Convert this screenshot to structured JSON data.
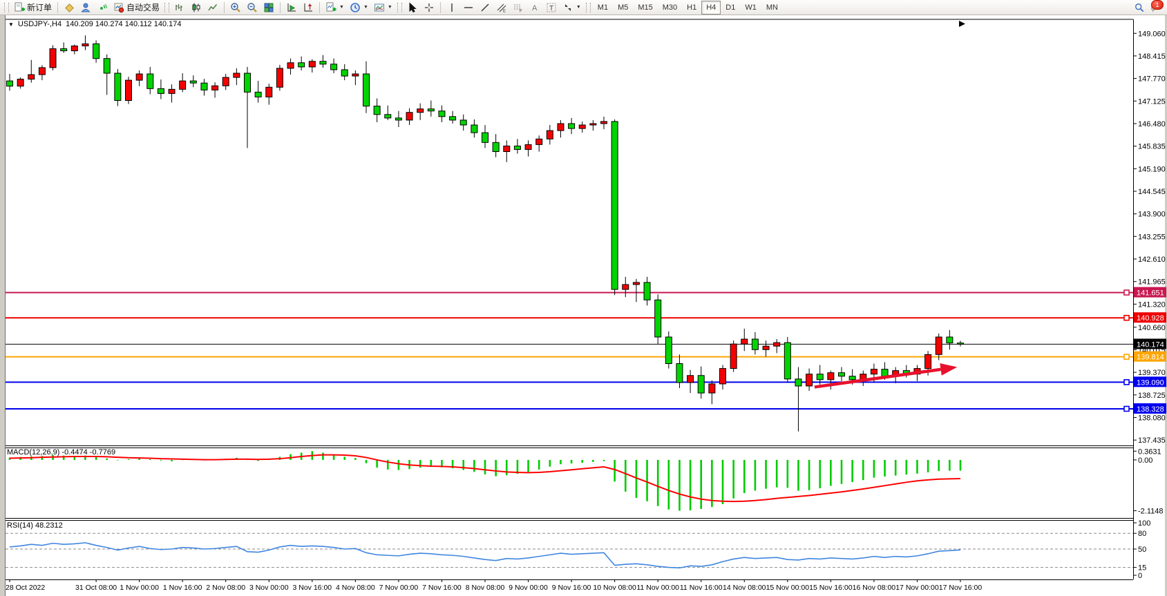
{
  "toolbar": {
    "new_order_label": "新订单",
    "autotrading_label": "自动交易",
    "notification_count": "1",
    "timeframes": [
      "M1",
      "M5",
      "M15",
      "M30",
      "H1",
      "H4",
      "D1",
      "W1",
      "MN"
    ],
    "active_timeframe": "H4"
  },
  "chart_header": {
    "symbol_period": "USDJPY-,H4",
    "ohlc": "140.209 140.274 140.112 140.174"
  },
  "chart_data": {
    "type": "candlestick",
    "symbol": "USDJPY-",
    "period": "H4",
    "title": "USDJPY-,H4  140.209 140.274 140.112 140.174",
    "ylim": [
      137.34,
      149.46
    ],
    "up_color": "#F40000",
    "down_color": "#00D400",
    "wick_color": "#000000",
    "price_ticks": [
      "149.060",
      "148.415",
      "147.770",
      "147.125",
      "146.480",
      "145.835",
      "145.190",
      "144.545",
      "143.900",
      "143.255",
      "142.610",
      "141.965",
      "141.320",
      "140.660",
      "140.015",
      "139.370",
      "138.725",
      "138.080",
      "137.435"
    ],
    "current_price": "140.174",
    "hlines": [
      {
        "price": 141.651,
        "label": "141.651",
        "color": "#C81850",
        "width": 2,
        "handle": true
      },
      {
        "price": 140.928,
        "label": "140.928",
        "color": "#EE0000",
        "width": 2,
        "handle": true
      },
      {
        "price": 140.174,
        "label": "140.174",
        "color": "#000000",
        "width": 1,
        "handle": false,
        "is_current_price": true
      },
      {
        "price": 139.814,
        "label": "139.814",
        "color": "#FFA500",
        "width": 2,
        "handle": true
      },
      {
        "price": 139.09,
        "label": "139.090",
        "color": "#0000EE",
        "width": 2,
        "handle": true
      },
      {
        "price": 138.328,
        "label": "138.328",
        "color": "#0000EE",
        "width": 2,
        "handle": true
      }
    ],
    "annotations": [
      {
        "type": "arrow",
        "color": "#E8112D",
        "x1_bar": 74.5,
        "y1_price": 138.95,
        "x2_bar": 87.7,
        "y2_price": 139.52
      }
    ],
    "candles": [
      [
        "2022.10.28 00:00",
        147.7,
        147.9,
        147.42,
        147.55
      ],
      [
        "2022.10.28 04:00",
        147.55,
        147.8,
        147.48,
        147.75
      ],
      [
        "2022.10.28 08:00",
        147.75,
        148.3,
        147.65,
        147.88
      ],
      [
        "2022.10.28 12:00",
        147.88,
        148.15,
        147.72,
        148.08
      ],
      [
        "2022.10.28 16:00",
        148.08,
        148.72,
        148.0,
        148.62
      ],
      [
        "2022.10.28 20:00",
        148.62,
        148.8,
        148.5,
        148.56
      ],
      [
        "2022.10.31 00:00",
        148.56,
        148.74,
        148.46,
        148.7
      ],
      [
        "2022.10.31 04:00",
        148.7,
        149.0,
        148.58,
        148.76
      ],
      [
        "2022.10.31 08:00",
        148.76,
        148.86,
        148.22,
        148.34
      ],
      [
        "2022.10.31 12:00",
        148.34,
        148.46,
        147.3,
        147.92
      ],
      [
        "2022.10.31 16:00",
        147.92,
        148.04,
        146.98,
        147.14
      ],
      [
        "2022.10.31 20:00",
        147.14,
        147.82,
        147.04,
        147.72
      ],
      [
        "2022.11.01 00:00",
        147.72,
        148.0,
        147.55,
        147.9
      ],
      [
        "2022.11.01 04:00",
        147.9,
        148.1,
        147.32,
        147.48
      ],
      [
        "2022.11.01 08:00",
        147.48,
        147.74,
        147.18,
        147.34
      ],
      [
        "2022.11.01 12:00",
        147.34,
        147.6,
        147.08,
        147.46
      ],
      [
        "2022.11.01 16:00",
        147.46,
        147.92,
        147.38,
        147.7
      ],
      [
        "2022.11.01 20:00",
        147.7,
        147.86,
        147.52,
        147.64
      ],
      [
        "2022.11.02 00:00",
        147.64,
        147.76,
        147.28,
        147.44
      ],
      [
        "2022.11.02 04:00",
        147.44,
        147.66,
        147.22,
        147.56
      ],
      [
        "2022.11.02 08:00",
        147.56,
        147.9,
        147.44,
        147.8
      ],
      [
        "2022.11.02 12:00",
        147.8,
        148.06,
        147.58,
        147.92
      ],
      [
        "2022.11.02 16:00",
        147.92,
        148.1,
        145.78,
        147.38
      ],
      [
        "2022.11.02 20:00",
        147.38,
        147.7,
        147.08,
        147.24
      ],
      [
        "2022.11.03 00:00",
        147.24,
        147.62,
        147.02,
        147.52
      ],
      [
        "2022.11.03 04:00",
        147.52,
        148.16,
        147.42,
        148.06
      ],
      [
        "2022.11.03 08:00",
        148.06,
        148.34,
        147.88,
        148.22
      ],
      [
        "2022.11.03 12:00",
        148.22,
        148.4,
        148.0,
        148.1
      ],
      [
        "2022.11.03 16:00",
        148.1,
        148.32,
        147.94,
        148.26
      ],
      [
        "2022.11.03 20:00",
        148.26,
        148.44,
        148.08,
        148.18
      ],
      [
        "2022.11.04 00:00",
        148.18,
        148.34,
        147.92,
        148.02
      ],
      [
        "2022.11.04 04:00",
        148.02,
        148.18,
        147.72,
        147.84
      ],
      [
        "2022.11.04 08:00",
        147.84,
        148.0,
        147.58,
        147.9
      ],
      [
        "2022.11.04 12:00",
        147.9,
        148.26,
        146.78,
        146.98
      ],
      [
        "2022.11.04 16:00",
        146.98,
        147.2,
        146.52,
        146.74
      ],
      [
        "2022.11.04 20:00",
        146.74,
        147.0,
        146.58,
        146.64
      ],
      [
        "2022.11.07 00:00",
        146.64,
        146.84,
        146.38,
        146.58
      ],
      [
        "2022.11.07 04:00",
        146.58,
        146.92,
        146.44,
        146.8
      ],
      [
        "2022.11.07 08:00",
        146.8,
        147.06,
        146.58,
        146.9
      ],
      [
        "2022.11.07 12:00",
        146.9,
        147.14,
        146.68,
        146.84
      ],
      [
        "2022.11.07 16:00",
        146.84,
        147.0,
        146.52,
        146.68
      ],
      [
        "2022.11.07 20:00",
        146.68,
        146.84,
        146.48,
        146.58
      ],
      [
        "2022.11.08 00:00",
        146.58,
        146.74,
        146.28,
        146.44
      ],
      [
        "2022.11.08 04:00",
        146.44,
        146.6,
        146.08,
        146.22
      ],
      [
        "2022.11.08 08:00",
        146.22,
        146.44,
        145.78,
        145.94
      ],
      [
        "2022.11.08 12:00",
        145.94,
        146.18,
        145.52,
        145.68
      ],
      [
        "2022.11.08 16:00",
        145.68,
        146.0,
        145.38,
        145.84
      ],
      [
        "2022.11.08 20:00",
        145.84,
        146.04,
        145.62,
        145.74
      ],
      [
        "2022.11.09 00:00",
        145.74,
        146.0,
        145.54,
        145.88
      ],
      [
        "2022.11.09 04:00",
        145.88,
        146.14,
        145.68,
        146.04
      ],
      [
        "2022.11.09 08:00",
        146.04,
        146.44,
        145.88,
        146.28
      ],
      [
        "2022.11.09 12:00",
        146.28,
        146.58,
        146.08,
        146.48
      ],
      [
        "2022.11.09 16:00",
        146.48,
        146.64,
        146.18,
        146.34
      ],
      [
        "2022.11.09 20:00",
        146.34,
        146.54,
        146.22,
        146.44
      ],
      [
        "2022.11.10 00:00",
        146.44,
        146.58,
        146.28,
        146.48
      ],
      [
        "2022.11.10 04:00",
        146.48,
        146.68,
        146.32,
        146.54
      ],
      [
        "2022.11.10 08:00",
        146.54,
        146.6,
        141.58,
        141.74
      ],
      [
        "2022.11.10 12:00",
        141.74,
        142.1,
        141.52,
        141.88
      ],
      [
        "2022.11.10 16:00",
        141.88,
        142.04,
        141.38,
        141.94
      ],
      [
        "2022.11.10 20:00",
        141.94,
        142.1,
        141.28,
        141.44
      ],
      [
        "2022.11.11 00:00",
        141.44,
        141.6,
        140.18,
        140.38
      ],
      [
        "2022.11.11 04:00",
        140.38,
        140.54,
        139.48,
        139.62
      ],
      [
        "2022.11.11 08:00",
        139.62,
        139.88,
        138.92,
        139.08
      ],
      [
        "2022.11.11 12:00",
        139.08,
        139.44,
        138.78,
        139.28
      ],
      [
        "2022.11.11 16:00",
        139.28,
        139.54,
        138.62,
        138.78
      ],
      [
        "2022.11.11 20:00",
        138.78,
        139.14,
        138.46,
        139.04
      ],
      [
        "2022.11.14 00:00",
        139.04,
        139.58,
        138.88,
        139.48
      ],
      [
        "2022.11.14 04:00",
        139.48,
        140.28,
        139.38,
        140.18
      ],
      [
        "2022.11.14 08:00",
        140.18,
        140.62,
        139.98,
        140.32
      ],
      [
        "2022.11.14 12:00",
        140.32,
        140.52,
        139.88,
        140.02
      ],
      [
        "2022.11.14 16:00",
        140.02,
        140.28,
        139.82,
        140.12
      ],
      [
        "2022.11.14 20:00",
        140.12,
        140.32,
        139.92,
        140.22
      ],
      [
        "2022.11.15 00:00",
        140.22,
        140.38,
        139.08,
        139.18
      ],
      [
        "2022.11.15 04:00",
        139.18,
        139.52,
        137.68,
        138.98
      ],
      [
        "2022.11.15 08:00",
        138.98,
        139.48,
        138.84,
        139.32
      ],
      [
        "2022.11.15 12:00",
        139.32,
        139.58,
        139.02,
        139.16
      ],
      [
        "2022.11.15 16:00",
        139.16,
        139.42,
        138.88,
        139.36
      ],
      [
        "2022.11.15 20:00",
        139.36,
        139.52,
        139.12,
        139.26
      ],
      [
        "2022.11.16 00:00",
        139.26,
        139.46,
        139.02,
        139.16
      ],
      [
        "2022.11.16 04:00",
        139.16,
        139.42,
        138.98,
        139.32
      ],
      [
        "2022.11.16 08:00",
        139.32,
        139.62,
        139.08,
        139.46
      ],
      [
        "2022.11.16 12:00",
        139.46,
        139.66,
        139.16,
        139.26
      ],
      [
        "2022.11.16 16:00",
        139.26,
        139.52,
        139.06,
        139.42
      ],
      [
        "2022.11.16 20:00",
        139.42,
        139.58,
        139.22,
        139.32
      ],
      [
        "2022.11.17 00:00",
        139.32,
        139.58,
        139.12,
        139.48
      ],
      [
        "2022.11.17 04:00",
        139.48,
        139.98,
        139.28,
        139.88
      ],
      [
        "2022.11.17 08:00",
        139.88,
        140.48,
        139.72,
        140.38
      ],
      [
        "2022.11.17 12:00",
        140.38,
        140.58,
        140.02,
        140.21
      ],
      [
        "2022.11.17 16:00",
        140.209,
        140.274,
        140.112,
        140.174
      ]
    ],
    "date_labels": [
      {
        "bar": 0,
        "text": "28 Oct 2022"
      },
      {
        "bar": 8,
        "text": "31 Oct 08:00"
      },
      {
        "bar": 12,
        "text": "1 Nov 00:00"
      },
      {
        "bar": 16,
        "text": "1 Nov 16:00"
      },
      {
        "bar": 20,
        "text": "2 Nov 08:00"
      },
      {
        "bar": 24,
        "text": "3 Nov 00:00"
      },
      {
        "bar": 28,
        "text": "3 Nov 16:00"
      },
      {
        "bar": 32,
        "text": "4 Nov 08:00"
      },
      {
        "bar": 36,
        "text": "7 Nov 00:00"
      },
      {
        "bar": 40,
        "text": "7 Nov 16:00"
      },
      {
        "bar": 44,
        "text": "8 Nov 08:00"
      },
      {
        "bar": 48,
        "text": "9 Nov 00:00"
      },
      {
        "bar": 52,
        "text": "9 Nov 16:00"
      },
      {
        "bar": 56,
        "text": "10 Nov 08:00"
      },
      {
        "bar": 60,
        "text": "11 Nov 00:00"
      },
      {
        "bar": 64,
        "text": "11 Nov 16:00"
      },
      {
        "bar": 68,
        "text": "14 Nov 08:00"
      },
      {
        "bar": 72,
        "text": "15 Nov 00:00"
      },
      {
        "bar": 76,
        "text": "15 Nov 16:00"
      },
      {
        "bar": 80,
        "text": "16 Nov 08:00"
      },
      {
        "bar": 84,
        "text": "17 Nov 00:00"
      },
      {
        "bar": 88,
        "text": "17 Nov 16:00"
      }
    ],
    "indicators": {
      "macd": {
        "label": "MACD(12,26,9) -0.4474 -0.7769",
        "main_value": "-0.4474",
        "signal_value": "-0.7769",
        "axis": [
          "0.3631",
          "0.00",
          "-2.1148"
        ],
        "axis_values": [
          0.3631,
          0,
          -2.1148
        ],
        "ylim": [
          -2.3,
          0.4
        ],
        "hist_color": "#00CC00",
        "signal_color": "#FF0000",
        "histogram": [
          0.1,
          0.12,
          0.14,
          0.16,
          0.2,
          0.18,
          0.17,
          0.18,
          0.14,
          0.06,
          -0.02,
          0.03,
          0.06,
          0.03,
          -0.03,
          -0.06,
          -0.01,
          0.01,
          -0.02,
          -0.01,
          0.05,
          0.09,
          0.03,
          -0.04,
          0.03,
          0.13,
          0.24,
          0.3,
          0.3631,
          0.3,
          0.22,
          0.13,
          0.08,
          -0.14,
          -0.32,
          -0.4,
          -0.42,
          -0.38,
          -0.32,
          -0.29,
          -0.31,
          -0.35,
          -0.42,
          -0.5,
          -0.6,
          -0.68,
          -0.64,
          -0.58,
          -0.5,
          -0.4,
          -0.28,
          -0.18,
          -0.15,
          -0.12,
          -0.08,
          -0.05,
          -0.9,
          -1.32,
          -1.58,
          -1.72,
          -1.92,
          -2.06,
          -2.1148,
          -2.1,
          -2.04,
          -1.96,
          -1.84,
          -1.6,
          -1.38,
          -1.28,
          -1.2,
          -1.14,
          -1.16,
          -1.28,
          -1.26,
          -1.18,
          -1.08,
          -1.0,
          -0.92,
          -0.84,
          -0.74,
          -0.69,
          -0.65,
          -0.61,
          -0.57,
          -0.52,
          -0.46,
          -0.45,
          -0.4474
        ],
        "signal": [
          0.07,
          0.08,
          0.09,
          0.11,
          0.12,
          0.13,
          0.14,
          0.14,
          0.14,
          0.13,
          0.11,
          0.09,
          0.08,
          0.07,
          0.05,
          0.04,
          0.03,
          0.02,
          0.01,
          0.01,
          0.02,
          0.03,
          0.03,
          0.02,
          0.03,
          0.05,
          0.09,
          0.14,
          0.18,
          0.21,
          0.21,
          0.2,
          0.17,
          0.1,
          0.0,
          -0.09,
          -0.16,
          -0.21,
          -0.24,
          -0.26,
          -0.27,
          -0.29,
          -0.32,
          -0.36,
          -0.41,
          -0.46,
          -0.5,
          -0.52,
          -0.53,
          -0.52,
          -0.49,
          -0.45,
          -0.41,
          -0.37,
          -0.33,
          -0.29,
          -0.4,
          -0.57,
          -0.75,
          -0.92,
          -1.1,
          -1.27,
          -1.42,
          -1.54,
          -1.63,
          -1.69,
          -1.72,
          -1.73,
          -1.72,
          -1.69,
          -1.65,
          -1.6,
          -1.56,
          -1.52,
          -1.48,
          -1.43,
          -1.38,
          -1.33,
          -1.27,
          -1.21,
          -1.14,
          -1.07,
          -1.0,
          -0.93,
          -0.87,
          -0.83,
          -0.8,
          -0.79,
          -0.7769
        ]
      },
      "rsi": {
        "label": "RSI(14) 48.2312",
        "value": "48.2312",
        "axis": [
          "100",
          "80",
          "50",
          "15",
          "0"
        ],
        "axis_values": [
          100,
          80,
          50,
          15,
          0
        ],
        "levels": [
          80,
          50,
          15
        ],
        "ylim": [
          0,
          100
        ],
        "color": "#3E86E0",
        "values": [
          54,
          56,
          59,
          57,
          61,
          59,
          60,
          62,
          57,
          53,
          48,
          52,
          55,
          51,
          49,
          50,
          53,
          52,
          50,
          51,
          53,
          55,
          45,
          44,
          48,
          54,
          57,
          55,
          56,
          55,
          53,
          50,
          51,
          43,
          39,
          38,
          37,
          40,
          42,
          41,
          39,
          38,
          36,
          33,
          30,
          28,
          32,
          31,
          33,
          36,
          39,
          42,
          40,
          41,
          42,
          43,
          19,
          21,
          22,
          20,
          17,
          15,
          14,
          18,
          17,
          20,
          26,
          31,
          34,
          32,
          33,
          34,
          30,
          29,
          32,
          31,
          33,
          32,
          31,
          33,
          36,
          34,
          36,
          35,
          37,
          41,
          46,
          47,
          48.2312
        ]
      }
    }
  }
}
